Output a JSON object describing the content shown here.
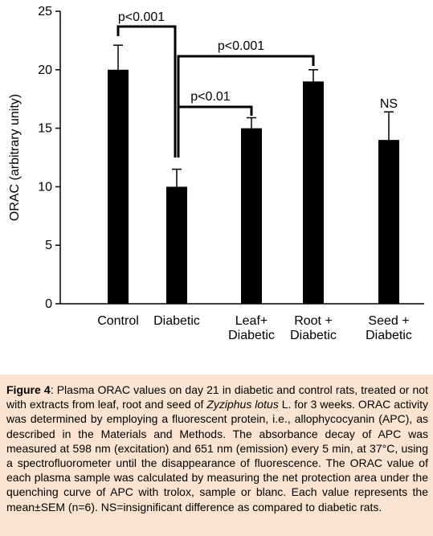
{
  "chart_data": {
    "type": "bar",
    "categories": [
      [
        "Control"
      ],
      [
        "Diabetic"
      ],
      [
        "Leaf+",
        "Diabetic"
      ],
      [
        "Root +",
        "Diabetic"
      ],
      [
        "Seed +",
        "Diabetic"
      ]
    ],
    "values": [
      20.0,
      10.0,
      15.0,
      19.0,
      14.0
    ],
    "errors": [
      2.1,
      1.5,
      0.9,
      1.0,
      2.4
    ],
    "ylabel": "ORAC  (arbitrary unity)",
    "ylim": [
      0,
      25
    ],
    "yticks": [
      "0",
      "5",
      "10",
      "15",
      "20",
      "25"
    ],
    "grid": false,
    "bar_color": "#000000",
    "annotations": [
      {
        "text": "p<0.001",
        "from": 0,
        "to": 1
      },
      {
        "text": "p<0.001",
        "from": 1,
        "to": 3
      },
      {
        "text": "p<0.01",
        "from": 1,
        "to": 2
      },
      {
        "text": "NS",
        "category": 4
      }
    ]
  },
  "caption": {
    "label": "Figure 4",
    "text_a": ": Plasma ORAC values on day 21 in diabetic and control rats, treated or not with extracts from leaf, root and seed of ",
    "species": "Zyziphus lotus",
    "text_b": " L. for 3 weeks. ORAC activity was determined by employing a fluorescent protein, i.e., allophycocyanin (APC), as described in the Materials and Methods. The absorbance decay of APC was measured at 598 nm (excitation) and 651 nm (emission) every 5 min, at 37°C, using a spectrofluorometer until the disappearance of fluorescence. The ORAC value of each plasma sample was calculated by measuring the net protection area under the quenching curve of APC with trolox, sample or blanc. Each value represents the mean±SEM (n=6). NS=insignificant difference as compared to diabetic rats."
  },
  "colors": {
    "caption_background": "#fbe3d2"
  }
}
